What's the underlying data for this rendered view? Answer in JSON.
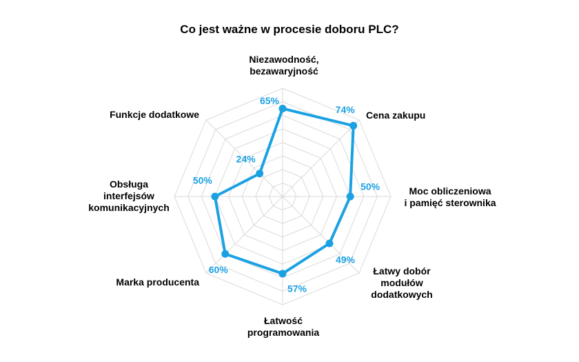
{
  "chart_data": {
    "type": "radar",
    "title": "Co jest ważne w procesie doboru PLC?",
    "categories": [
      "Niezawodność, bezawaryjność",
      "Cena zakupu",
      "Moc obliczeniowa i pamięć sterownika",
      "Łatwy dobór modułów dodatkowych",
      "Łatwość programowania",
      "Marka producenta",
      "Obsługa interfejsów komunikacyjnych",
      "Funkcje dodatkowe"
    ],
    "category_lines": [
      [
        "Niezawodność,",
        "bezawaryjność"
      ],
      [
        "Cena zakupu"
      ],
      [
        "Moc obliczeniowa",
        "i pamięć sterownika"
      ],
      [
        "Łatwy dobór",
        "modułów",
        "dodatkowych"
      ],
      [
        "Łatwość",
        "programowania"
      ],
      [
        "Marka producenta"
      ],
      [
        "Obsługa",
        "interfejsów",
        "komunikacyjnych"
      ],
      [
        "Funkcje dodatkowe"
      ]
    ],
    "values": [
      65,
      74,
      50,
      49,
      57,
      60,
      50,
      24
    ],
    "value_labels": [
      "65%",
      "74%",
      "50%",
      "49%",
      "57%",
      "60%",
      "50%",
      "24%"
    ],
    "rmax": 80,
    "grid_rings": 8,
    "grid": true,
    "legend": "none",
    "series_color": "#1BA1E2",
    "grid_color": "#D9D9D9"
  }
}
